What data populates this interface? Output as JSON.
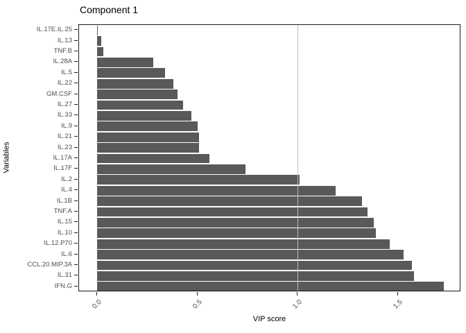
{
  "figure": {
    "background": "#ffffff"
  },
  "chart_data": {
    "type": "bar",
    "orientation": "horizontal",
    "title": "Component 1",
    "xlabel": "VIP score",
    "ylabel": "Variables",
    "categories": [
      "IL.17E.IL.25",
      "IL.13",
      "TNF.B",
      "IL.28A",
      "IL.5",
      "IL.22",
      "GM.CSF",
      "IL.27",
      "IL.33",
      "IL.9",
      "IL.21",
      "IL.23",
      "IL.17A",
      "IL.17F",
      "IL.2",
      "IL.4",
      "IL.1B",
      "TNF.A",
      "IL.15",
      "IL.10",
      "IL.12.P70",
      "IL.6",
      "CCL.20.MIP.3A",
      "IL.31",
      "IFN.G"
    ],
    "values": [
      0.005,
      0.02,
      0.03,
      0.28,
      0.34,
      0.38,
      0.4,
      0.43,
      0.47,
      0.5,
      0.51,
      0.51,
      0.56,
      0.74,
      1.01,
      1.19,
      1.32,
      1.35,
      1.38,
      1.39,
      1.46,
      1.53,
      1.57,
      1.58,
      1.73
    ],
    "xlim": [
      -0.09,
      1.816
    ],
    "x_ticks": [
      0.0,
      0.5,
      1.0,
      1.5
    ],
    "x_tick_labels": [
      "0.0",
      "0.5",
      "1.0",
      "1.5"
    ],
    "reference_line_x": 1.0,
    "bar_color": "#595959",
    "reference_line_color": "#bebebe",
    "axis_text_color": "#4d4d4d",
    "grid": "off",
    "legend": "none"
  }
}
